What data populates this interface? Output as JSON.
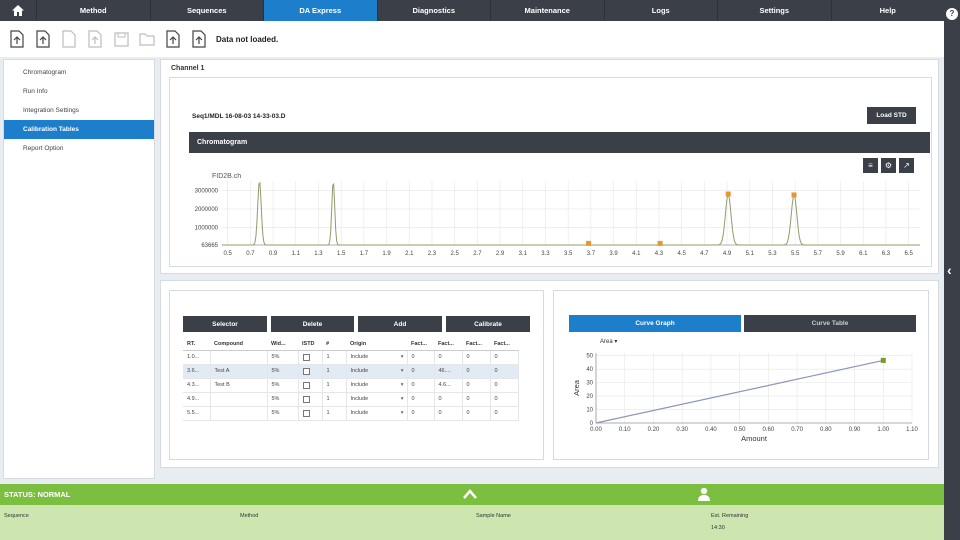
{
  "nav": {
    "items": [
      "Method",
      "Sequences",
      "DA Express",
      "Diagnostics",
      "Maintenance",
      "Logs",
      "Settings",
      "Help"
    ],
    "active": "DA Express"
  },
  "toolbar": {
    "status": "Data not loaded."
  },
  "sidebar": {
    "items": [
      "Chromatogram",
      "Run Info",
      "Integration Settings",
      "Calibration Tables",
      "Report Option"
    ],
    "active": "Calibration Tables"
  },
  "channel": {
    "title": "Channel 1",
    "file": "Seq1/MDL 16-08-03 14-33-03.D",
    "load_std": "Load STD",
    "chromatogram_label": "Chromatogram",
    "icons": [
      "menu-icon",
      "gear-icon",
      "expand-icon"
    ]
  },
  "chart_data": [
    {
      "type": "line",
      "series_label": "FID2B.ch",
      "x_ticks": [
        "0.5",
        "0.7",
        "0.9",
        "1.1",
        "1.3",
        "1.5",
        "1.7",
        "1.9",
        "2.1",
        "2.3",
        "2.5",
        "2.7",
        "2.9",
        "3.1",
        "3.3",
        "3.5",
        "3.7",
        "3.9",
        "4.1",
        "4.3",
        "4.5",
        "4.7",
        "4.9",
        "5.1",
        "5.3",
        "5.5",
        "5.7",
        "5.9",
        "6.1",
        "6.3",
        "6.5"
      ],
      "y_ticks": [
        "63665",
        "1000000",
        "2000000",
        "3000000"
      ],
      "xlim": [
        0.45,
        6.6
      ],
      "ylim": [
        63665,
        3500000
      ],
      "peaks": [
        {
          "x": 0.78,
          "y": 3500000,
          "w": 0.022
        },
        {
          "x": 1.43,
          "y": 3500000,
          "w": 0.018
        },
        {
          "x": 4.91,
          "y": 2800000,
          "w": 0.035
        },
        {
          "x": 5.49,
          "y": 2750000,
          "w": 0.035
        }
      ],
      "markers": [
        {
          "x": 3.68,
          "y": 150000
        },
        {
          "x": 4.31,
          "y": 150000
        },
        {
          "x": 4.91,
          "y": 2800000
        },
        {
          "x": 5.49,
          "y": 2750000
        }
      ],
      "colors": {
        "line": "#8f9c6a",
        "marker": "#e8962e"
      }
    },
    {
      "type": "scatter",
      "xlabel": "Amount",
      "ylabel": "Area",
      "dropdown": "Area",
      "x_ticks": [
        "0.00",
        "0.10",
        "0.20",
        "0.30",
        "0.40",
        "0.50",
        "0.60",
        "0.70",
        "0.80",
        "0.90",
        "1.00",
        "1.10"
      ],
      "y_ticks": [
        "0",
        "10",
        "20",
        "30",
        "40",
        "50"
      ],
      "xlim": [
        0,
        1.1
      ],
      "ylim": [
        0,
        52
      ],
      "points": [
        {
          "x": 1.0,
          "y": 46.5
        }
      ],
      "line": [
        {
          "x": 0,
          "y": 0
        },
        {
          "x": 1.0,
          "y": 46.5
        }
      ],
      "colors": {
        "line": "#8b96b8",
        "point": "#7a9a2a"
      }
    }
  ],
  "calibration": {
    "buttons": [
      "Selector",
      "Delete",
      "Add",
      "Calibrate"
    ],
    "columns": [
      "RT.",
      "Compound",
      "Wid...",
      "ISTD",
      "#",
      "Origin",
      "Fact...",
      "Fact...",
      "Fact...",
      "Fact..."
    ],
    "rows": [
      [
        "1.0...",
        "",
        "5%",
        "",
        "1",
        "Include",
        "0",
        "0",
        "0",
        "0"
      ],
      [
        "3.6...",
        "Test A",
        "5%",
        "",
        "1",
        "Include",
        "0",
        "46....",
        "0",
        "0"
      ],
      [
        "4.3...",
        "Test B",
        "5%",
        "",
        "1",
        "Include",
        "0",
        "4.6...",
        "0",
        "0"
      ],
      [
        "4.9...",
        "",
        "5%",
        "",
        "1",
        "Include",
        "0",
        "0",
        "0",
        "0"
      ],
      [
        "5.5...",
        "",
        "5%",
        "",
        "1",
        "Include",
        "0",
        "0",
        "0",
        "0"
      ]
    ],
    "selected_row": 1
  },
  "curve_tabs": {
    "graph": "Curve Graph",
    "table": "Curve Table",
    "active": "graph"
  },
  "status": {
    "text": "STATUS: NORMAL"
  },
  "footer": {
    "sequence": "Sequence",
    "method": "Method",
    "sample": "Sample Name",
    "est": "Est. Remaining",
    "time": "14:30"
  }
}
